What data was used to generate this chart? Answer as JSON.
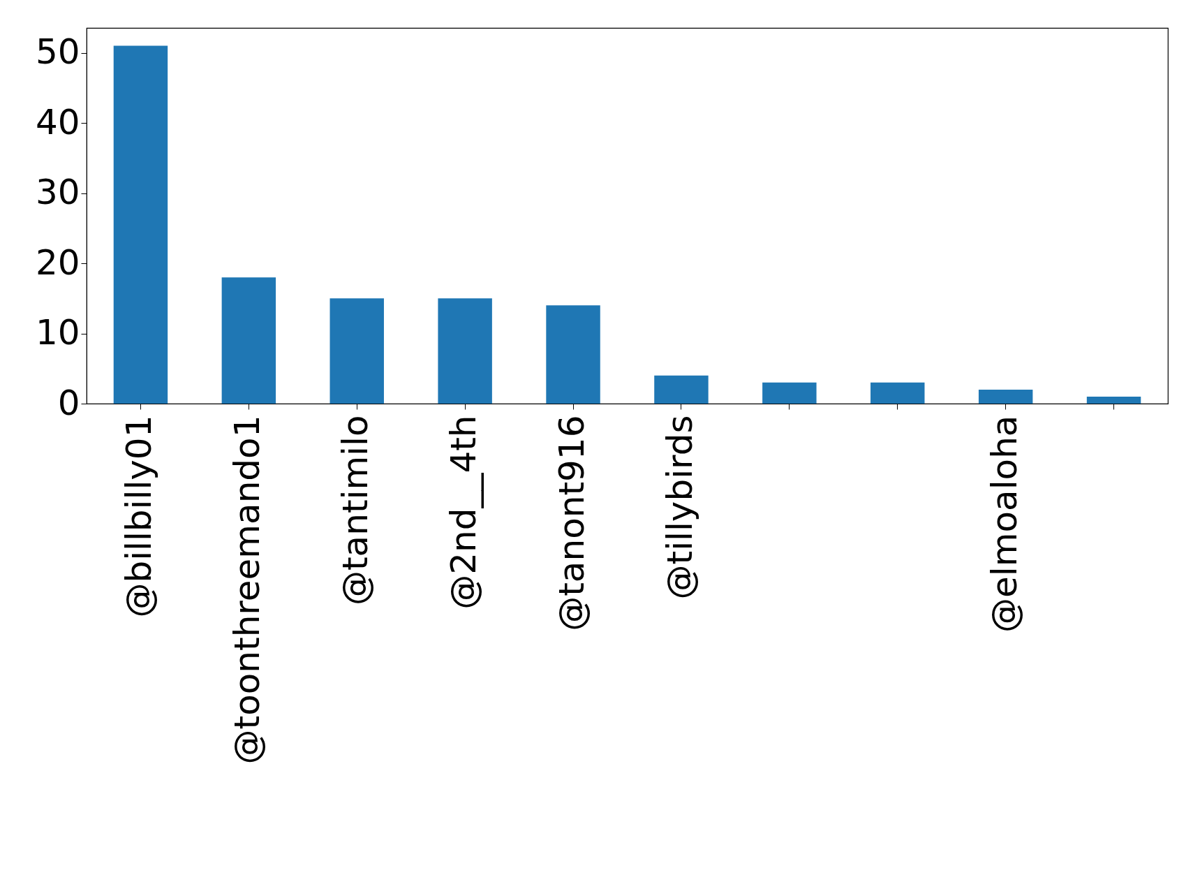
{
  "chart_data": {
    "type": "bar",
    "categories": [
      "@billbilly01",
      "@toonthreemando1",
      "@tantimilo",
      "@2nd__4th",
      "@tanont916",
      "@tillybirds",
      null,
      null,
      "@elmoaloha",
      null
    ],
    "values": [
      51,
      18,
      15,
      15,
      14,
      4,
      3,
      3,
      2,
      1
    ],
    "color": "#1f77b4",
    "ylim": [
      0,
      53.55
    ],
    "yticks": [
      0,
      10,
      20,
      30,
      40,
      50
    ],
    "grid": false
  }
}
